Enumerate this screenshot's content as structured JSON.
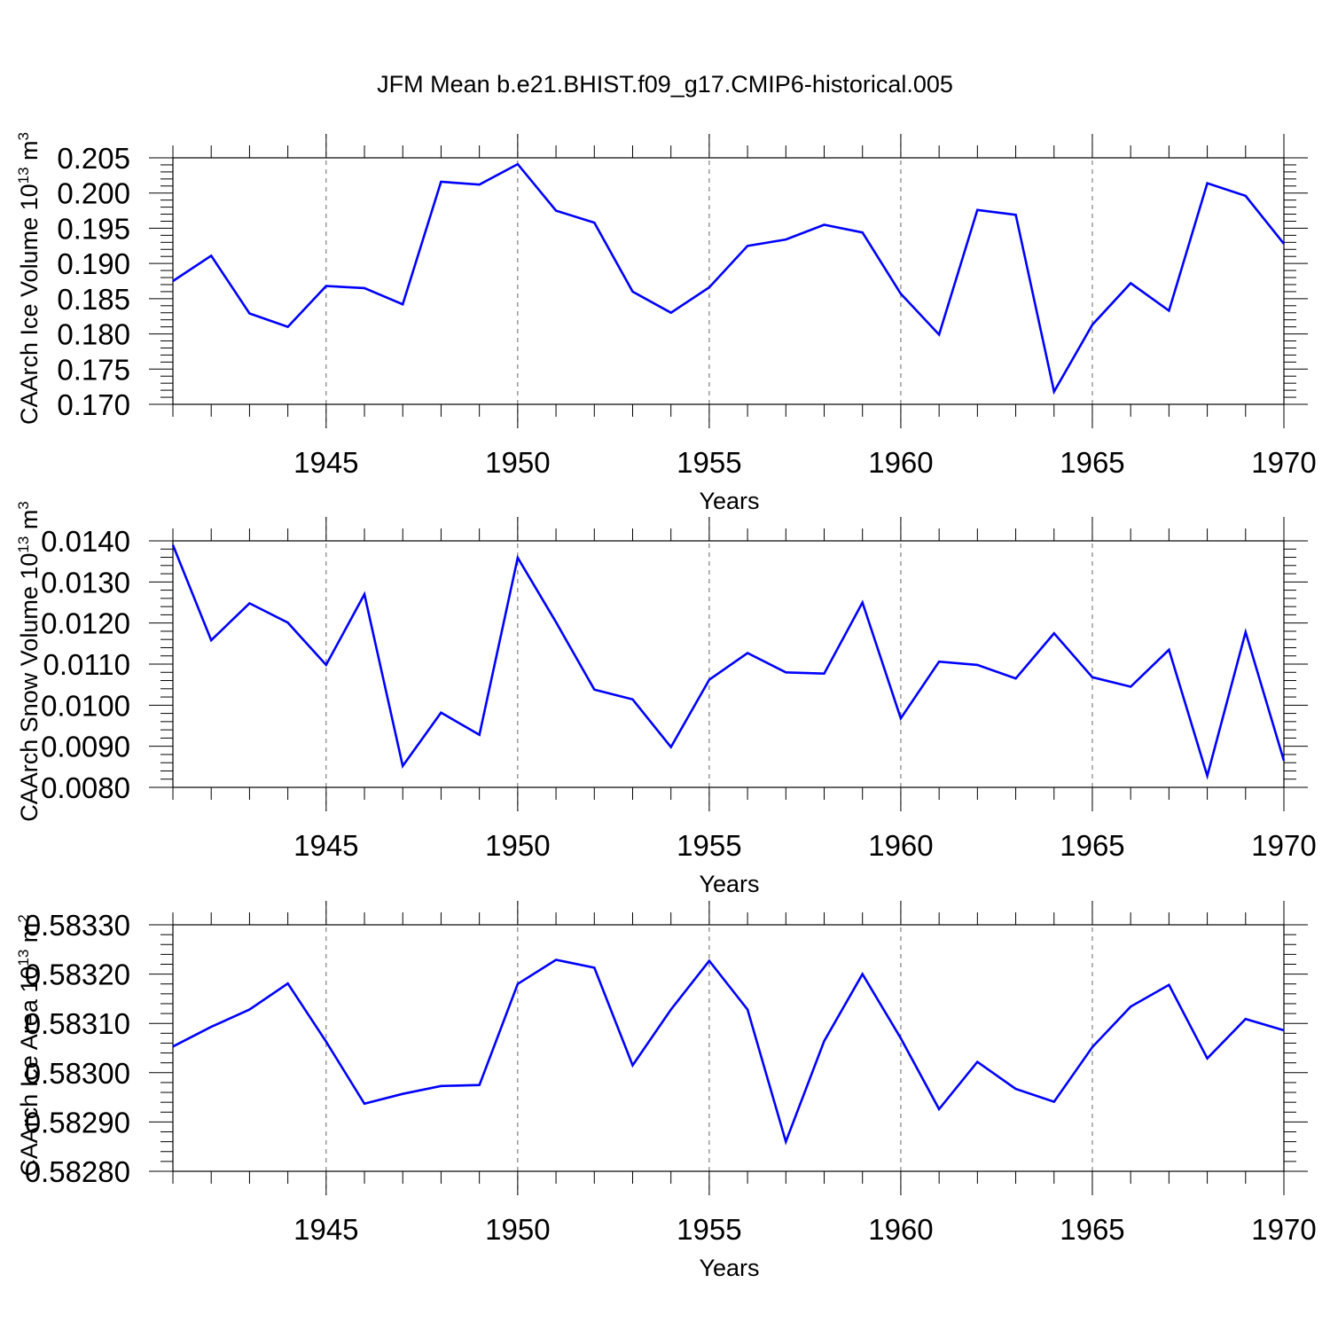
{
  "title": "JFM Mean b.e21.BHIST.f09_g17.CMIP6-historical.005",
  "chart_data": [
    {
      "type": "line",
      "ylabel": "CAArch Ice Volume 10",
      "ylabel_sup1": "13",
      "ylabel_mid": " m",
      "ylabel_sup2": "3",
      "xlabel": "Years",
      "xlim": [
        1941,
        1970
      ],
      "ylim": [
        0.17,
        0.205
      ],
      "yticks": [
        0.17,
        0.175,
        0.18,
        0.185,
        0.19,
        0.195,
        0.2,
        0.205
      ],
      "ytick_labels": [
        "0.170",
        "0.175",
        "0.180",
        "0.185",
        "0.190",
        "0.195",
        "0.200",
        "0.205"
      ],
      "xticks": [
        1945,
        1950,
        1955,
        1960,
        1965,
        1970
      ],
      "xtick_labels": [
        "1945",
        "1950",
        "1955",
        "1960",
        "1965",
        "1970"
      ],
      "x": [
        1941,
        1942,
        1943,
        1944,
        1945,
        1946,
        1947,
        1948,
        1949,
        1950,
        1951,
        1952,
        1953,
        1954,
        1955,
        1956,
        1957,
        1958,
        1959,
        1960,
        1961,
        1962,
        1963,
        1964,
        1965,
        1966,
        1967,
        1968,
        1969,
        1970
      ],
      "y": [
        0.1875,
        0.1911,
        0.1829,
        0.181,
        0.1868,
        0.1865,
        0.1842,
        0.2016,
        0.2012,
        0.2041,
        0.1975,
        0.1958,
        0.186,
        0.183,
        0.1866,
        0.1925,
        0.1934,
        0.1955,
        0.1944,
        0.1857,
        0.1799,
        0.1976,
        0.1969,
        0.1718,
        0.1813,
        0.1872,
        0.1833,
        0.2014,
        0.1996,
        0.1928
      ],
      "color": "#0000ff"
    },
    {
      "type": "line",
      "ylabel": "CAArch Snow Volume 10",
      "ylabel_sup1": "13",
      "ylabel_mid": " m",
      "ylabel_sup2": "3",
      "xlabel": "Years",
      "xlim": [
        1941,
        1970
      ],
      "ylim": [
        0.008,
        0.014
      ],
      "yticks": [
        0.008,
        0.009,
        0.01,
        0.011,
        0.012,
        0.013,
        0.014
      ],
      "ytick_labels": [
        "0.0080",
        "0.0090",
        "0.0100",
        "0.0110",
        "0.0120",
        "0.0130",
        "0.0140"
      ],
      "xticks": [
        1945,
        1950,
        1955,
        1960,
        1965,
        1970
      ],
      "xtick_labels": [
        "1945",
        "1950",
        "1955",
        "1960",
        "1965",
        "1970"
      ],
      "x": [
        1941,
        1942,
        1943,
        1944,
        1945,
        1946,
        1947,
        1948,
        1949,
        1950,
        1951,
        1952,
        1953,
        1954,
        1955,
        1956,
        1957,
        1958,
        1959,
        1960,
        1961,
        1962,
        1963,
        1964,
        1965,
        1966,
        1967,
        1968,
        1969,
        1970
      ],
      "y": [
        0.0139,
        0.01158,
        0.01248,
        0.01201,
        0.01098,
        0.0127,
        0.00852,
        0.00982,
        0.00928,
        0.01359,
        0.01202,
        0.01038,
        0.01014,
        0.00898,
        0.01062,
        0.01127,
        0.0108,
        0.01077,
        0.0125,
        0.00968,
        0.01106,
        0.01098,
        0.01065,
        0.01175,
        0.01068,
        0.01045,
        0.01135,
        0.00828,
        0.01178,
        0.00865
      ],
      "color": "#0000ff"
    },
    {
      "type": "line",
      "ylabel": "CAArch Ice Area 10",
      "ylabel_sup1": "13",
      "ylabel_mid": " m",
      "ylabel_sup2": "2",
      "xlabel": "Years",
      "xlim": [
        1941,
        1970
      ],
      "ylim": [
        0.5828,
        0.5833
      ],
      "yticks": [
        0.5828,
        0.5829,
        0.583,
        0.5831,
        0.5832,
        0.5833
      ],
      "ytick_labels": [
        "0.58280",
        "0.58290",
        "0.58300",
        "0.58310",
        "0.58320",
        "0.58330"
      ],
      "xticks": [
        1945,
        1950,
        1955,
        1960,
        1965,
        1970
      ],
      "xtick_labels": [
        "1945",
        "1950",
        "1955",
        "1960",
        "1965",
        "1970"
      ],
      "x": [
        1941,
        1942,
        1943,
        1944,
        1945,
        1946,
        1947,
        1948,
        1949,
        1950,
        1951,
        1952,
        1953,
        1954,
        1955,
        1956,
        1957,
        1958,
        1959,
        1960,
        1961,
        1962,
        1963,
        1964,
        1965,
        1966,
        1967,
        1968,
        1969,
        1970
      ],
      "y": [
        0.583053,
        0.583093,
        0.583128,
        0.583181,
        0.583063,
        0.582937,
        0.582957,
        0.582973,
        0.582975,
        0.58318,
        0.583229,
        0.583213,
        0.583015,
        0.583128,
        0.583227,
        0.583128,
        0.58286,
        0.583064,
        0.5832,
        0.58307,
        0.582926,
        0.583022,
        0.582967,
        0.582941,
        0.583052,
        0.583134,
        0.583178,
        0.583029,
        0.583109,
        0.583086
      ],
      "color": "#0000ff"
    }
  ]
}
